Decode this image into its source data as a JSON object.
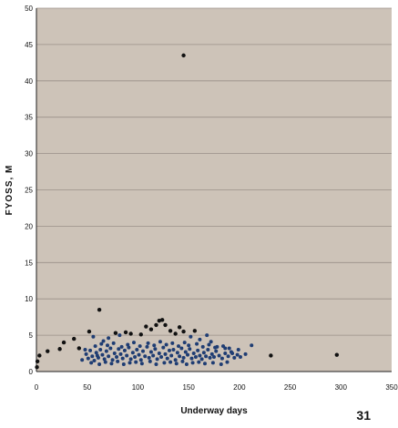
{
  "chart_data": {
    "type": "scatter",
    "title": "",
    "xlabel": "Underway days",
    "ylabel": "FYOSS, M",
    "xlim": [
      0,
      350
    ],
    "ylim": [
      0,
      50
    ],
    "x_ticks": [
      "0",
      "50",
      "100",
      "150",
      "200",
      "250",
      "300",
      "350"
    ],
    "y_ticks": [
      "0",
      "5",
      "10",
      "15",
      "20",
      "25",
      "30",
      "35",
      "40",
      "45",
      "50"
    ],
    "grid": "horizontal",
    "plot_background": "#cdc3b8",
    "marker_color": "#1f3d73",
    "outlier_color": "#111111",
    "points": [
      [
        145,
        43.5
      ],
      [
        296,
        2.3
      ],
      [
        231,
        2.2
      ],
      [
        62,
        8.5
      ],
      [
        11,
        2.8
      ],
      [
        3,
        2.2
      ],
      [
        1,
        1.4
      ],
      [
        0.5,
        0.6
      ],
      [
        23,
        3.1
      ],
      [
        27,
        4.0
      ],
      [
        37,
        4.5
      ],
      [
        42,
        3.2
      ],
      [
        45,
        1.6
      ],
      [
        48,
        3.0
      ],
      [
        52,
        5.5
      ],
      [
        56,
        4.8
      ],
      [
        60,
        2.2
      ],
      [
        66,
        4.2
      ],
      [
        71,
        4.6
      ],
      [
        78,
        5.3
      ],
      [
        82,
        5.0
      ],
      [
        88,
        5.4
      ],
      [
        93,
        5.2
      ],
      [
        103,
        5.1
      ],
      [
        108,
        6.2
      ],
      [
        113,
        5.8
      ],
      [
        118,
        6.4
      ],
      [
        121,
        7.0
      ],
      [
        124,
        7.1
      ],
      [
        127,
        6.4
      ],
      [
        132,
        5.6
      ],
      [
        137,
        5.2
      ],
      [
        141,
        6.1
      ],
      [
        145,
        5.5
      ],
      [
        152,
        4.8
      ],
      [
        156,
        5.6
      ],
      [
        161,
        4.4
      ],
      [
        168,
        5.0
      ],
      [
        172,
        4.1
      ],
      [
        178,
        3.4
      ],
      [
        186,
        3.2
      ],
      [
        193,
        2.5
      ],
      [
        199,
        3.0
      ],
      [
        206,
        2.4
      ],
      [
        212,
        3.6
      ],
      [
        49,
        2.4
      ],
      [
        51,
        1.8
      ],
      [
        53,
        2.9
      ],
      [
        55,
        2.1
      ],
      [
        57,
        1.5
      ],
      [
        59,
        2.6
      ],
      [
        61,
        1.9
      ],
      [
        63,
        3.0
      ],
      [
        65,
        2.3
      ],
      [
        67,
        1.7
      ],
      [
        69,
        2.8
      ],
      [
        71,
        2.1
      ],
      [
        73,
        3.2
      ],
      [
        75,
        1.6
      ],
      [
        77,
        2.5
      ],
      [
        79,
        2.0
      ],
      [
        81,
        3.1
      ],
      [
        83,
        2.4
      ],
      [
        85,
        1.8
      ],
      [
        87,
        2.9
      ],
      [
        89,
        2.2
      ],
      [
        91,
        3.3
      ],
      [
        93,
        1.7
      ],
      [
        95,
        2.6
      ],
      [
        97,
        2.0
      ],
      [
        99,
        3.0
      ],
      [
        101,
        2.3
      ],
      [
        103,
        1.6
      ],
      [
        105,
        2.8
      ],
      [
        107,
        2.1
      ],
      [
        109,
        3.4
      ],
      [
        111,
        1.9
      ],
      [
        113,
        2.7
      ],
      [
        115,
        2.2
      ],
      [
        117,
        3.1
      ],
      [
        119,
        1.7
      ],
      [
        121,
        2.5
      ],
      [
        123,
        2.0
      ],
      [
        125,
        3.3
      ],
      [
        127,
        2.4
      ],
      [
        129,
        1.8
      ],
      [
        131,
        2.9
      ],
      [
        133,
        2.2
      ],
      [
        135,
        3.0
      ],
      [
        137,
        1.6
      ],
      [
        139,
        2.6
      ],
      [
        141,
        2.1
      ],
      [
        143,
        3.2
      ],
      [
        145,
        1.9
      ],
      [
        147,
        2.7
      ],
      [
        149,
        2.3
      ],
      [
        151,
        3.1
      ],
      [
        153,
        1.8
      ],
      [
        155,
        2.5
      ],
      [
        157,
        2.0
      ],
      [
        159,
        2.9
      ],
      [
        161,
        2.2
      ],
      [
        163,
        1.7
      ],
      [
        165,
        2.6
      ],
      [
        167,
        2.1
      ],
      [
        169,
        3.0
      ],
      [
        171,
        1.9
      ],
      [
        173,
        2.4
      ],
      [
        175,
        2.0
      ],
      [
        177,
        2.8
      ],
      [
        180,
        2.2
      ],
      [
        183,
        1.8
      ],
      [
        186,
        2.5
      ],
      [
        189,
        2.1
      ],
      [
        192,
        2.7
      ],
      [
        195,
        1.9
      ],
      [
        198,
        2.3
      ],
      [
        201,
        2.0
      ],
      [
        58,
        3.5
      ],
      [
        64,
        3.8
      ],
      [
        70,
        3.6
      ],
      [
        76,
        3.9
      ],
      [
        84,
        3.4
      ],
      [
        90,
        3.7
      ],
      [
        96,
        4.0
      ],
      [
        102,
        3.5
      ],
      [
        110,
        3.9
      ],
      [
        116,
        3.6
      ],
      [
        122,
        4.1
      ],
      [
        128,
        3.7
      ],
      [
        134,
        3.9
      ],
      [
        140,
        3.5
      ],
      [
        146,
        4.0
      ],
      [
        150,
        3.6
      ],
      [
        158,
        3.8
      ],
      [
        164,
        3.4
      ],
      [
        170,
        3.7
      ],
      [
        176,
        3.3
      ],
      [
        184,
        3.5
      ],
      [
        190,
        3.2
      ],
      [
        54,
        1.2
      ],
      [
        62,
        1.0
      ],
      [
        68,
        1.3
      ],
      [
        74,
        1.1
      ],
      [
        80,
        1.4
      ],
      [
        86,
        1.0
      ],
      [
        92,
        1.2
      ],
      [
        98,
        1.3
      ],
      [
        104,
        1.1
      ],
      [
        112,
        1.4
      ],
      [
        118,
        1.0
      ],
      [
        126,
        1.2
      ],
      [
        132,
        1.3
      ],
      [
        138,
        1.1
      ],
      [
        144,
        1.4
      ],
      [
        148,
        1.0
      ],
      [
        154,
        1.2
      ],
      [
        160,
        1.3
      ],
      [
        166,
        1.1
      ],
      [
        174,
        1.2
      ],
      [
        182,
        1.0
      ],
      [
        188,
        1.3
      ]
    ]
  },
  "page_number": "31"
}
